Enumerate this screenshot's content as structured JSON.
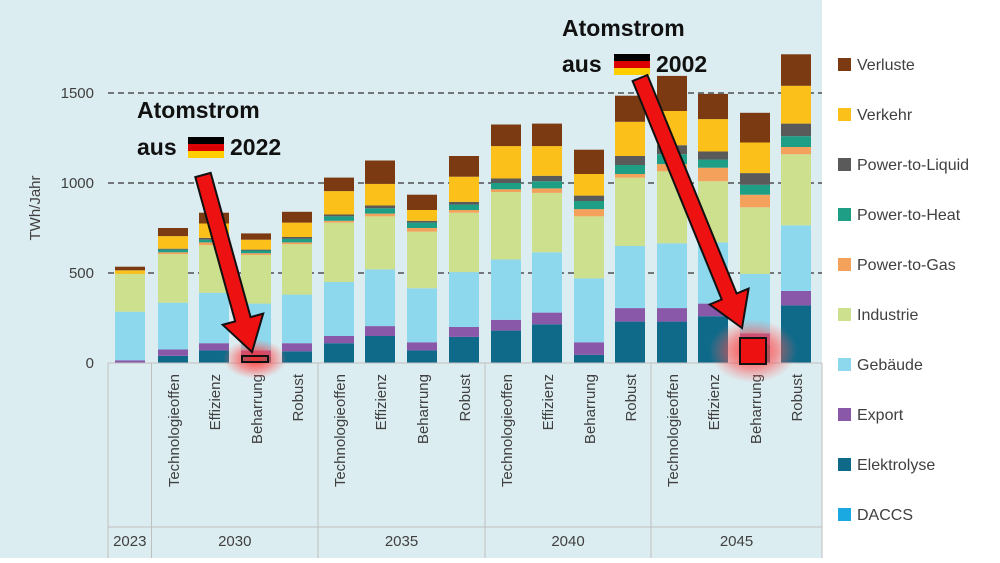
{
  "chart_data": {
    "type": "stacked-bar",
    "ylabel": "TWh/Jahr",
    "ylim": [
      0,
      1700
    ],
    "yticks": [
      0,
      500,
      1000,
      1500
    ],
    "gridlines": "dashed at 500, 1000, 1500",
    "legend_position": "right",
    "groups": [
      {
        "year": "2023",
        "scenarios": [
          ""
        ]
      },
      {
        "year": "2030",
        "scenarios": [
          "Technologieoffen",
          "Effizienz",
          "Beharrung",
          "Robust"
        ]
      },
      {
        "year": "2035",
        "scenarios": [
          "Technologieoffen",
          "Effizienz",
          "Beharrung",
          "Robust"
        ]
      },
      {
        "year": "2040",
        "scenarios": [
          "Technologieoffen",
          "Effizienz",
          "Beharrung",
          "Robust"
        ]
      },
      {
        "year": "2045",
        "scenarios": [
          "Technologieoffen",
          "Effizienz",
          "Beharrung",
          "Robust"
        ]
      }
    ],
    "categories": [
      "2023",
      "2030 Technologieoffen",
      "2030 Effizienz",
      "2030 Beharrung",
      "2030 Robust",
      "2035 Technologieoffen",
      "2035 Effizienz",
      "2035 Beharrung",
      "2035 Robust",
      "2040 Technologieoffen",
      "2040 Effizienz",
      "2040 Beharrung",
      "2040 Robust",
      "2045 Technologieoffen",
      "2045 Effizienz",
      "2045 Beharrung",
      "2045 Robust"
    ],
    "series": [
      {
        "name": "DACCS",
        "color": "#1aa9e0",
        "values": [
          0,
          0,
          0,
          0,
          0,
          0,
          0,
          0,
          0,
          0,
          0,
          0,
          0,
          0,
          0,
          0,
          0
        ]
      },
      {
        "name": "Elektrolyse",
        "color": "#0f6a8a",
        "values": [
          0,
          40,
          70,
          35,
          65,
          110,
          150,
          70,
          145,
          180,
          215,
          45,
          230,
          230,
          260,
          100,
          320
        ]
      },
      {
        "name": "Export",
        "color": "#8a58a8",
        "values": [
          15,
          35,
          40,
          35,
          45,
          40,
          55,
          45,
          55,
          60,
          65,
          70,
          75,
          75,
          70,
          65,
          80
        ]
      },
      {
        "name": "Gebäude",
        "color": "#8ed8ee",
        "values": [
          270,
          260,
          280,
          260,
          270,
          300,
          315,
          300,
          305,
          335,
          335,
          355,
          345,
          360,
          340,
          330,
          365
        ]
      },
      {
        "name": "Industrie",
        "color": "#cde08e",
        "values": [
          210,
          270,
          265,
          270,
          280,
          330,
          295,
          315,
          330,
          375,
          330,
          345,
          380,
          400,
          340,
          370,
          395
        ]
      },
      {
        "name": "Power-to-Gas",
        "color": "#f4a15c",
        "values": [
          0,
          10,
          15,
          10,
          10,
          10,
          15,
          20,
          15,
          15,
          25,
          40,
          20,
          40,
          75,
          70,
          40
        ]
      },
      {
        "name": "Power-to-Heat",
        "color": "#1f9e86",
        "values": [
          0,
          15,
          15,
          15,
          20,
          25,
          30,
          30,
          30,
          35,
          40,
          45,
          50,
          55,
          45,
          55,
          60
        ]
      },
      {
        "name": "Power-to-Liquid",
        "color": "#5a5a5a",
        "values": [
          0,
          5,
          10,
          5,
          10,
          10,
          15,
          10,
          15,
          25,
          30,
          30,
          50,
          50,
          45,
          65,
          70
        ]
      },
      {
        "name": "Verkehr",
        "color": "#fbc019",
        "values": [
          20,
          70,
          80,
          55,
          80,
          130,
          120,
          60,
          140,
          180,
          165,
          120,
          190,
          190,
          180,
          170,
          210
        ]
      },
      {
        "name": "Verluste",
        "color": "#7b3a12",
        "values": [
          20,
          45,
          60,
          35,
          60,
          75,
          130,
          85,
          115,
          120,
          125,
          135,
          145,
          195,
          140,
          165,
          175
        ]
      }
    ],
    "legend_order": [
      "Verluste",
      "Verkehr",
      "Power-to-Liquid",
      "Power-to-Heat",
      "Power-to-Gas",
      "Industrie",
      "Gebäude",
      "Export",
      "Elektrolyse",
      "DACCS"
    ],
    "annotations": [
      {
        "line1": "Atomstrom",
        "line2_prefix": "aus",
        "flag": "de-flag-icon",
        "line2_suffix": "2022",
        "points_to": "2030 Beharrung",
        "highlight_value_twh": 25
      },
      {
        "line1": "Atomstrom",
        "line2_prefix": "aus",
        "flag": "de-flag-icon",
        "line2_suffix": "2002",
        "points_to": "2045 Beharrung",
        "highlight_value_twh": 75
      }
    ]
  }
}
